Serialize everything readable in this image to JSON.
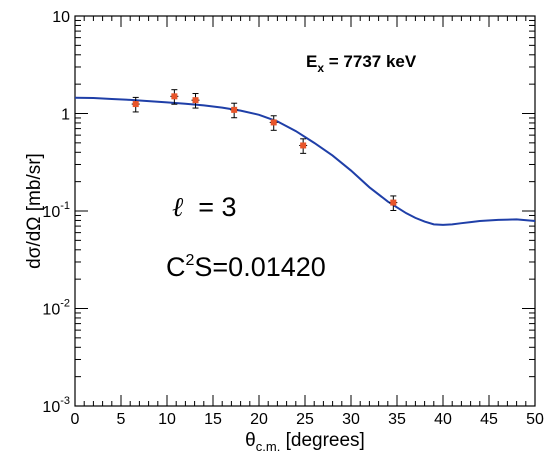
{
  "chart_data": {
    "type": "scatter",
    "title": "",
    "xlabel": "θ",
    "xlabel_sub": "c.m.",
    "xlabel_unit": "[degrees]",
    "ylabel": "dσ/dΩ [mb/sr]",
    "xlim": [
      0,
      50
    ],
    "ylim": [
      0.001,
      10
    ],
    "yscale": "log",
    "grid": false,
    "x_ticks": [
      "0",
      "5",
      "10",
      "15",
      "20",
      "25",
      "30",
      "35",
      "40",
      "45",
      "50"
    ],
    "y_ticks": [
      {
        "base": "10",
        "exp": "-3"
      },
      {
        "base": "10",
        "exp": "-2"
      },
      {
        "base": "10",
        "exp": "-1"
      },
      {
        "base": "1",
        "exp": ""
      },
      {
        "base": "10",
        "exp": ""
      }
    ],
    "annotations": {
      "energy_main": "E",
      "energy_sub": "x",
      "energy_rest": " = 7737 keV",
      "ell_symbol": "ℓ",
      "ell_value": "  = 3",
      "c2s_main": "C",
      "c2s_sup": "2",
      "c2s_rest": "S=0.01420"
    },
    "series": [
      {
        "kind": "points",
        "color": "#e8552a",
        "x": [
          6.6,
          10.8,
          13.1,
          17.3,
          21.6,
          24.8,
          34.6
        ],
        "y": [
          1.25,
          1.5,
          1.37,
          1.09,
          0.81,
          0.47,
          0.122
        ],
        "y_err_frac": [
          0.17,
          0.17,
          0.17,
          0.17,
          0.17,
          0.17,
          0.17
        ]
      },
      {
        "kind": "line",
        "color": "#1f3fa8",
        "x": [
          0,
          2,
          4,
          6,
          8,
          10,
          12,
          14,
          16,
          18,
          20,
          22,
          24,
          26,
          28,
          30,
          32,
          34,
          36,
          37,
          38,
          39,
          40,
          41,
          42,
          43,
          44,
          46,
          48,
          50
        ],
        "y": [
          1.45,
          1.44,
          1.41,
          1.38,
          1.34,
          1.3,
          1.26,
          1.21,
          1.15,
          1.07,
          0.97,
          0.83,
          0.66,
          0.5,
          0.37,
          0.26,
          0.175,
          0.125,
          0.095,
          0.085,
          0.078,
          0.073,
          0.072,
          0.073,
          0.075,
          0.077,
          0.079,
          0.081,
          0.082,
          0.079
        ]
      }
    ]
  }
}
